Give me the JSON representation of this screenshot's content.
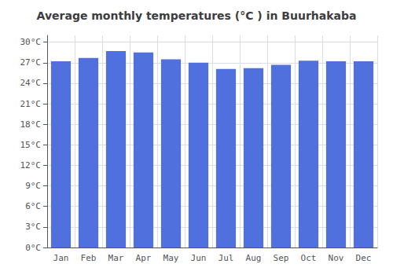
{
  "chart_data": {
    "type": "bar",
    "title": "Average monthly temperatures (°C ) in Buurhakaba",
    "categories": [
      "Jan",
      "Feb",
      "Mar",
      "Apr",
      "May",
      "Jun",
      "Jul",
      "Aug",
      "Sep",
      "Oct",
      "Nov",
      "Dec"
    ],
    "values": [
      27.2,
      27.7,
      28.7,
      28.5,
      27.5,
      27.0,
      26.1,
      26.2,
      26.7,
      27.3,
      27.2,
      27.2
    ],
    "ylim": [
      0,
      31
    ],
    "yticks": [
      {
        "value": 0,
        "label": "0°C"
      },
      {
        "value": 3,
        "label": "3°C"
      },
      {
        "value": 6,
        "label": "6°C"
      },
      {
        "value": 9,
        "label": "9°C"
      },
      {
        "value": 12,
        "label": "12°C"
      },
      {
        "value": 15,
        "label": "15°C"
      },
      {
        "value": 18,
        "label": "18°C"
      },
      {
        "value": 21,
        "label": "21°C"
      },
      {
        "value": 24,
        "label": "24°C"
      },
      {
        "value": 27,
        "label": "27°C"
      },
      {
        "value": 30,
        "label": "30°C"
      }
    ],
    "grid": true
  }
}
